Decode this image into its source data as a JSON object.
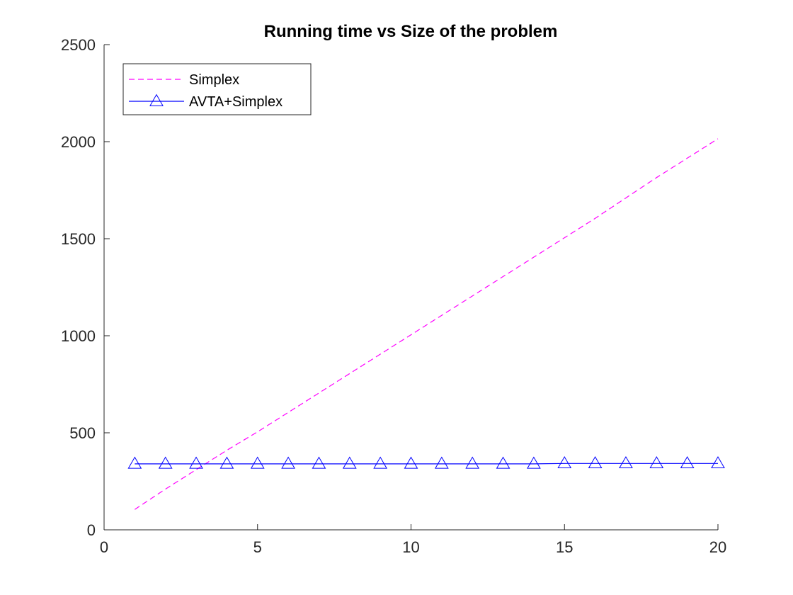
{
  "chart_data": {
    "type": "line",
    "title": "Running time vs Size of the problem",
    "xlabel": "",
    "ylabel": "",
    "xlim": [
      0,
      20
    ],
    "ylim": [
      0,
      2500
    ],
    "xticks": [
      0,
      5,
      10,
      15,
      20
    ],
    "yticks": [
      0,
      500,
      1000,
      1500,
      2000,
      2500
    ],
    "grid": false,
    "legend_position": "top-left",
    "series": [
      {
        "name": "Simplex",
        "color": "#ff00ff",
        "line_style": "dashed",
        "marker": "none",
        "x": [
          1,
          2,
          3,
          4,
          5,
          6,
          7,
          8,
          9,
          10,
          11,
          12,
          13,
          14,
          15,
          16,
          17,
          18,
          19,
          20
        ],
        "values": [
          105,
          210,
          310,
          410,
          505,
          605,
          705,
          805,
          905,
          1005,
          1105,
          1205,
          1305,
          1405,
          1505,
          1605,
          1710,
          1815,
          1915,
          2015
        ]
      },
      {
        "name": "AVTA+Simplex",
        "color": "#0000ff",
        "line_style": "solid",
        "marker": "triangle",
        "x": [
          1,
          2,
          3,
          4,
          5,
          6,
          7,
          8,
          9,
          10,
          11,
          12,
          13,
          14,
          15,
          16,
          17,
          18,
          19,
          20
        ],
        "values": [
          340,
          340,
          340,
          340,
          340,
          340,
          340,
          340,
          340,
          340,
          340,
          340,
          340,
          340,
          342,
          342,
          342,
          342,
          342,
          342
        ]
      }
    ]
  }
}
